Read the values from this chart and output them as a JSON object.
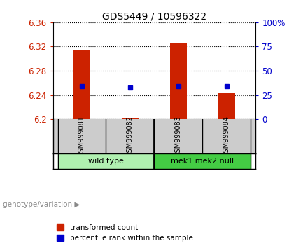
{
  "title": "GDS5449 / 10596322",
  "samples": [
    "GSM999081",
    "GSM999082",
    "GSM999083",
    "GSM999084"
  ],
  "bar_baseline": 6.2,
  "bar_tops": [
    6.315,
    6.202,
    6.326,
    6.243
  ],
  "blue_y": [
    6.254,
    6.252,
    6.254,
    6.255
  ],
  "ylim_left": [
    6.2,
    6.36
  ],
  "ylim_right": [
    0,
    100
  ],
  "yticks_left": [
    6.2,
    6.24,
    6.28,
    6.32,
    6.36
  ],
  "yticks_right": [
    0,
    25,
    50,
    75,
    100
  ],
  "ytick_labels_right": [
    "0",
    "25",
    "50",
    "75",
    "100%"
  ],
  "bar_color": "#cc2200",
  "blue_color": "#0000cc",
  "bg_color": "#ffffff",
  "label_area_bg": "#cccccc",
  "wt_color": "#b0f0b0",
  "mek_color": "#44cc44",
  "bar_width": 0.35,
  "genotype_label": "genotype/variation"
}
